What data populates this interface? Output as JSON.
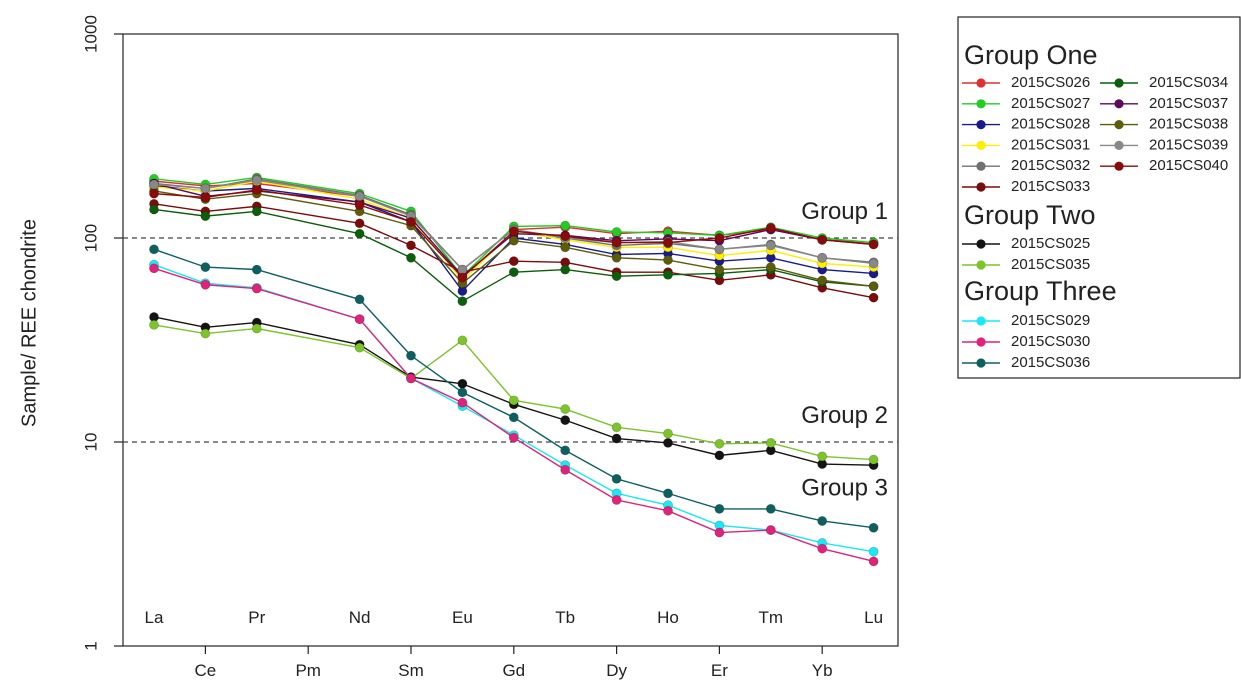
{
  "chart_data": {
    "type": "line",
    "ylabel": "Sample/ REE chondrite",
    "xlabel": "",
    "yscale": "log",
    "ylim": [
      1,
      1000
    ],
    "yticks": [
      1,
      10,
      100,
      1000
    ],
    "ytick_labels": [
      "1",
      "10",
      "100",
      "1000"
    ],
    "categories": [
      "La",
      "Ce",
      "Pr",
      "Pm",
      "Nd",
      "Sm",
      "Eu",
      "Gd",
      "Tb",
      "Dy",
      "Ho",
      "Er",
      "Tm",
      "Yb",
      "Lu"
    ],
    "reference_lines": [
      {
        "y": 100,
        "style": "dashed"
      },
      {
        "y": 10,
        "style": "dashed"
      }
    ],
    "annotations": [
      {
        "text": "Group 1",
        "near_y": 100
      },
      {
        "text": "Group 2",
        "near_y": 10
      },
      {
        "text": "Group 3",
        "near_y": 4.4
      }
    ],
    "legend_groups": [
      {
        "title": "Group One",
        "series": [
          "2015CS026",
          "2015CS027",
          "2015CS028",
          "2015CS031",
          "2015CS032",
          "2015CS033",
          "2015CS034",
          "2015CS037",
          "2015CS038",
          "2015CS039",
          "2015CS040"
        ]
      },
      {
        "title": "Group Two",
        "series": [
          "2015CS025",
          "2015CS035"
        ]
      },
      {
        "title": "Group Three",
        "series": [
          "2015CS029",
          "2015CS030",
          "2015CS036"
        ]
      }
    ],
    "legend_position": "right",
    "series": [
      {
        "name": "2015CS026",
        "color": "#e03030",
        "values": [
          190,
          180,
          185,
          null,
          160,
          130,
          70,
          110,
          113,
          105,
          108,
          103,
          110,
          98,
          95
        ]
      },
      {
        "name": "2015CS027",
        "color": "#22cc22",
        "values": [
          195,
          183,
          198,
          null,
          165,
          135,
          65,
          114,
          115,
          107,
          106,
          103,
          113,
          100,
          95
        ]
      },
      {
        "name": "2015CS028",
        "color": "#1a1a8c",
        "values": [
          180,
          170,
          175,
          null,
          150,
          120,
          55,
          100,
          93,
          83,
          84,
          77,
          80,
          70,
          67
        ]
      },
      {
        "name": "2015CS031",
        "color": "#ffee00",
        "values": [
          178,
          170,
          190,
          null,
          155,
          125,
          62,
          108,
          98,
          90,
          90,
          82,
          87,
          75,
          72
        ]
      },
      {
        "name": "2015CS032",
        "color": "#707070",
        "values": [
          185,
          175,
          195,
          null,
          162,
          130,
          70,
          110,
          100,
          92,
          94,
          88,
          93,
          80,
          76
        ]
      },
      {
        "name": "2015CS033",
        "color": "#7a0c0c",
        "values": [
          147,
          135,
          143,
          null,
          118,
          92,
          68,
          77,
          76,
          68,
          68,
          62,
          66,
          57,
          51
        ]
      },
      {
        "name": "2015CS034",
        "color": "#0b5e0b",
        "values": [
          138,
          128,
          135,
          null,
          105,
          80,
          49,
          68,
          70,
          65,
          66,
          67,
          70,
          61,
          58
        ]
      },
      {
        "name": "2015CS037",
        "color": "#5c0a5c",
        "values": [
          185,
          160,
          170,
          null,
          150,
          125,
          65,
          105,
          103,
          97,
          99,
          97,
          110,
          98,
          93
        ]
      },
      {
        "name": "2015CS038",
        "color": "#5c5c0a",
        "values": [
          170,
          155,
          165,
          null,
          135,
          115,
          60,
          97,
          90,
          80,
          78,
          70,
          72,
          62,
          58
        ]
      },
      {
        "name": "2015CS039",
        "color": "#888888",
        "values": [
          183,
          175,
          192,
          null,
          160,
          128,
          70,
          110,
          100,
          95,
          96,
          88,
          92,
          80,
          75
        ]
      },
      {
        "name": "2015CS040",
        "color": "#8b0a0a",
        "values": [
          165,
          158,
          172,
          null,
          145,
          120,
          64,
          108,
          102,
          95,
          95,
          100,
          112,
          98,
          93
        ]
      },
      {
        "name": "2015CS025",
        "color": "#141414",
        "values": [
          41,
          36.5,
          38.5,
          null,
          30,
          20.8,
          19.3,
          15.3,
          12.8,
          10.4,
          9.9,
          8.6,
          9.1,
          7.8,
          7.7
        ]
      },
      {
        "name": "2015CS035",
        "color": "#7cc42a",
        "values": [
          37.5,
          34,
          36,
          null,
          29,
          20.5,
          31.5,
          16,
          14.5,
          11.8,
          11,
          9.8,
          9.9,
          8.5,
          8.2
        ]
      },
      {
        "name": "2015CS029",
        "color": "#1ae8f5",
        "values": [
          74,
          60,
          57,
          null,
          40,
          20.5,
          15,
          10.8,
          7.7,
          5.6,
          4.9,
          3.9,
          3.7,
          3.2,
          2.9
        ]
      },
      {
        "name": "2015CS030",
        "color": "#e0227a",
        "values": [
          71,
          59,
          56.5,
          null,
          40,
          20.5,
          15.6,
          10.5,
          7.3,
          5.2,
          4.6,
          3.6,
          3.7,
          3.0,
          2.6
        ]
      },
      {
        "name": "2015CS036",
        "color": "#0e6060",
        "values": [
          88,
          72,
          70,
          null,
          50,
          26.5,
          17.5,
          13.2,
          9.1,
          6.6,
          5.6,
          4.7,
          4.7,
          4.1,
          3.8
        ]
      }
    ]
  }
}
